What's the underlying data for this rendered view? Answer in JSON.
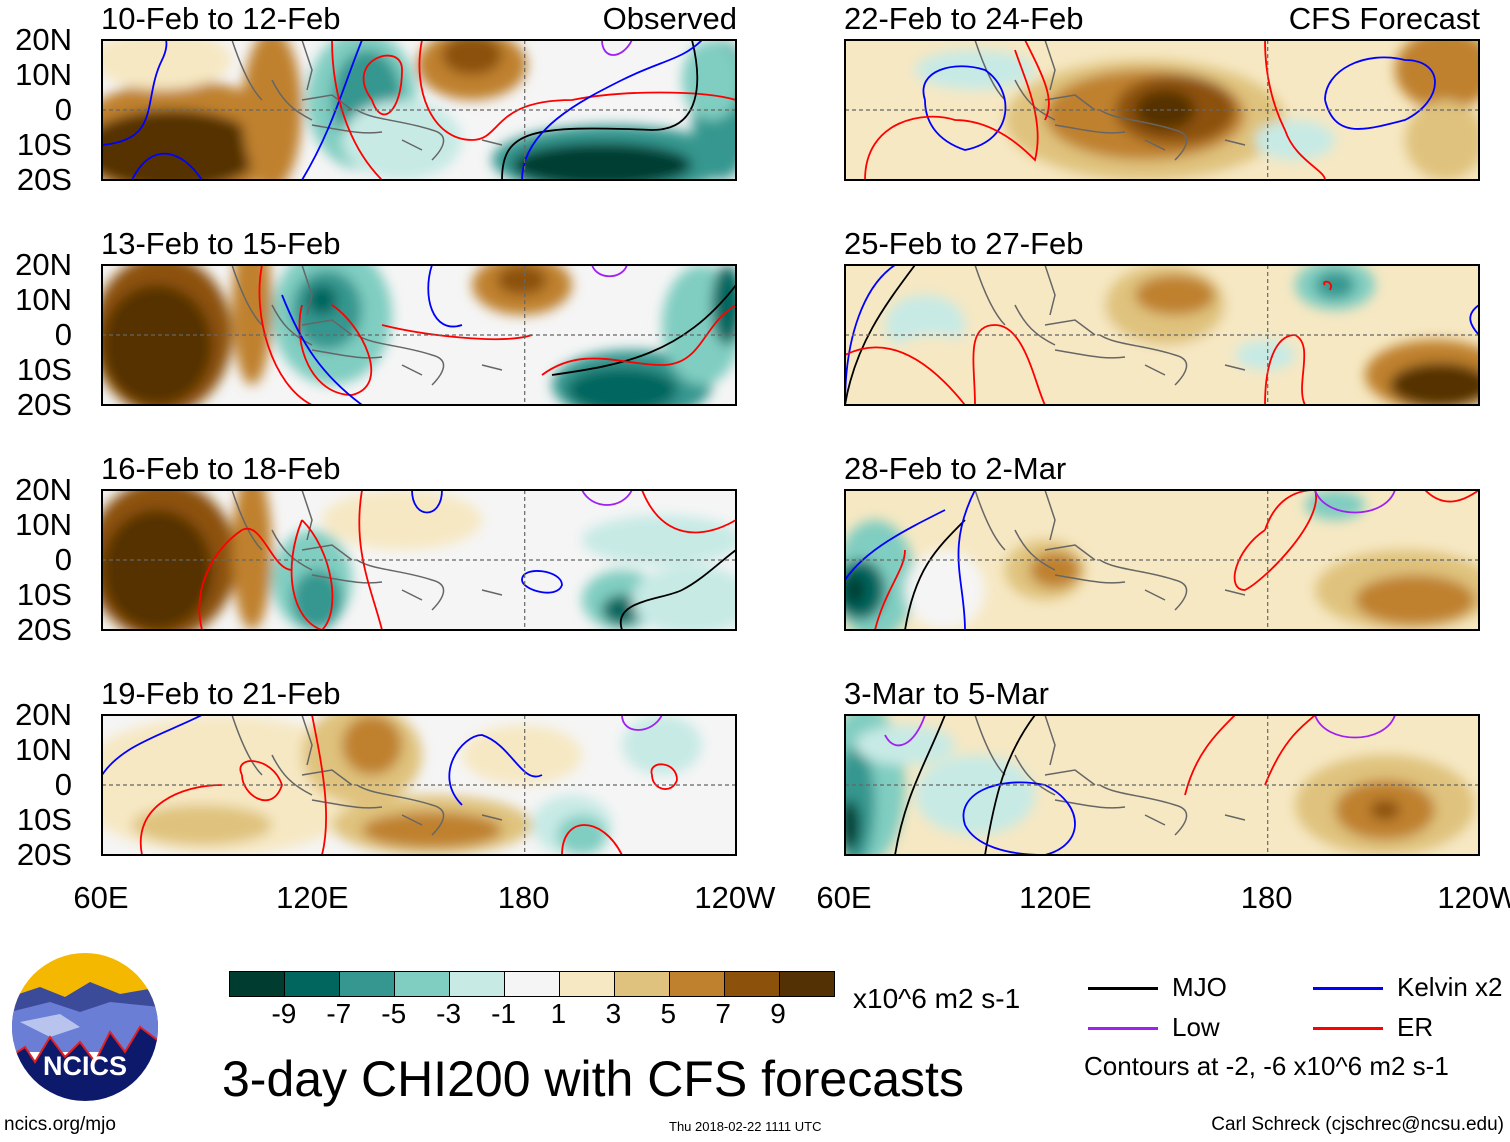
{
  "chart_data": {
    "type": "heatmap",
    "title": "3-day CHI200 with CFS forecasts",
    "variable": "CHI200 anomaly",
    "units": "x10^6 m2 s-1",
    "lat_ticks": [
      "20N",
      "10N",
      "0",
      "10S",
      "20S"
    ],
    "lon_ticks": [
      "60E",
      "120E",
      "180",
      "120W"
    ],
    "lat_range": [
      -20,
      20
    ],
    "lon_range": [
      60,
      240
    ],
    "panels": [
      {
        "title": "10-Feb to 12-Feb",
        "label": "Observed"
      },
      {
        "title": "13-Feb to 15-Feb"
      },
      {
        "title": "16-Feb to 18-Feb"
      },
      {
        "title": "19-Feb to 21-Feb"
      },
      {
        "title": "22-Feb to 24-Feb",
        "label": "CFS Forecast"
      },
      {
        "title": "25-Feb to 27-Feb"
      },
      {
        "title": "28-Feb to 2-Mar"
      },
      {
        "title": "3-Mar to 5-Mar"
      }
    ],
    "colorbar": {
      "levels": [
        "-9",
        "-7",
        "-5",
        "-3",
        "-1",
        "1",
        "3",
        "5",
        "7",
        "9"
      ],
      "colors": [
        "#003c30",
        "#01665e",
        "#35978f",
        "#80cdc1",
        "#c7eae5",
        "#f5f5f5",
        "#f6e8c3",
        "#dfc27d",
        "#bf812d",
        "#8c510a",
        "#543005"
      ]
    },
    "legend": [
      {
        "label": "MJO",
        "color": "#000000"
      },
      {
        "label": "Kelvin x2",
        "color": "#0000ff"
      },
      {
        "label": "Low",
        "color": "#a020f0"
      },
      {
        "label": "ER",
        "color": "#ff0000"
      }
    ],
    "contour_note": "Contours at -2, -6 x10^6 m2 s-1"
  },
  "footer": {
    "logo_text": "NCICS",
    "url": "ncics.org/mjo",
    "timestamp": "Thu 2018-02-22 1111 UTC",
    "author": "Carl Schreck (cjschrec@ncsu.edu)"
  }
}
